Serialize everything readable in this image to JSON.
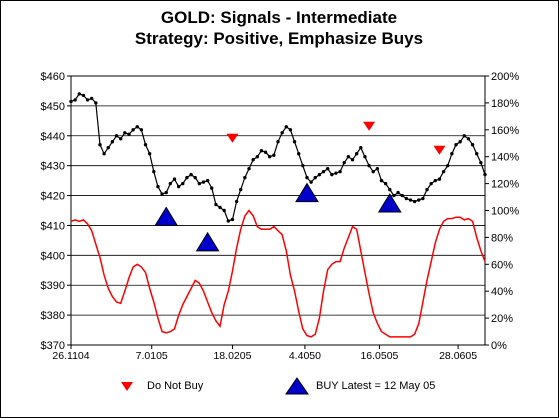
{
  "chart_data": {
    "type": "line",
    "title": "GOLD: Signals - Intermediate",
    "subtitle": "Strategy: Positive, Emphasize Buys",
    "x_ticks": [
      "26.1104",
      "7.0105",
      "18.0205",
      "4.4050",
      "16.0505",
      "28.0605"
    ],
    "left_axis": {
      "ylim": [
        370,
        460
      ],
      "ticks": [
        "$370",
        "$380",
        "$390",
        "$400",
        "$410",
        "$420",
        "$430",
        "$440",
        "$450",
        "$460"
      ]
    },
    "right_axis": {
      "ylim": [
        0,
        200
      ],
      "ticks": [
        "0%",
        "20%",
        "40%",
        "60%",
        "80%",
        "100%",
        "120%",
        "140%",
        "160%",
        "180%",
        "200%"
      ]
    },
    "grid": true,
    "price": [
      [
        0,
        451.5
      ],
      [
        1,
        452
      ],
      [
        2,
        454
      ],
      [
        3,
        453.5
      ],
      [
        4,
        452
      ],
      [
        5,
        452.5
      ],
      [
        6,
        451
      ],
      [
        7,
        437
      ],
      [
        8,
        434
      ],
      [
        9,
        436
      ],
      [
        10,
        438
      ],
      [
        11,
        440
      ],
      [
        12,
        439
      ],
      [
        13,
        441
      ],
      [
        14,
        440.5
      ],
      [
        15,
        442
      ],
      [
        16,
        443
      ],
      [
        17,
        442
      ],
      [
        18,
        437
      ],
      [
        19,
        434
      ],
      [
        20,
        428
      ],
      [
        21,
        423
      ],
      [
        22,
        420.5
      ],
      [
        23,
        421
      ],
      [
        24,
        424
      ],
      [
        25,
        425.5
      ],
      [
        26,
        423
      ],
      [
        27,
        424
      ],
      [
        28,
        426
      ],
      [
        29,
        427
      ],
      [
        30,
        426
      ],
      [
        31,
        424
      ],
      [
        32,
        424.5
      ],
      [
        33,
        425
      ],
      [
        34,
        422.5
      ],
      [
        35,
        417
      ],
      [
        36,
        416
      ],
      [
        37,
        415
      ],
      [
        38,
        411.5
      ],
      [
        39,
        412
      ],
      [
        40,
        418
      ],
      [
        41,
        422
      ],
      [
        42,
        426
      ],
      [
        43,
        429
      ],
      [
        44,
        432
      ],
      [
        45,
        433
      ],
      [
        46,
        435
      ],
      [
        47,
        434.5
      ],
      [
        48,
        433
      ],
      [
        49,
        433.5
      ],
      [
        50,
        438
      ],
      [
        51,
        441
      ],
      [
        52,
        443
      ],
      [
        53,
        442
      ],
      [
        54,
        438
      ],
      [
        55,
        434
      ],
      [
        56,
        430
      ],
      [
        57,
        426
      ],
      [
        58,
        424.5
      ],
      [
        59,
        426
      ],
      [
        60,
        427
      ],
      [
        61,
        428
      ],
      [
        62,
        429
      ],
      [
        63,
        427
      ],
      [
        64,
        427.5
      ],
      [
        65,
        428
      ],
      [
        66,
        431
      ],
      [
        67,
        433
      ],
      [
        68,
        432
      ],
      [
        69,
        434
      ],
      [
        70,
        436
      ],
      [
        71,
        433
      ],
      [
        72,
        430
      ],
      [
        73,
        428
      ],
      [
        74,
        429
      ],
      [
        75,
        425
      ],
      [
        76,
        424
      ],
      [
        77,
        422
      ],
      [
        78,
        420
      ],
      [
        79,
        421
      ],
      [
        80,
        420
      ],
      [
        81,
        419
      ],
      [
        82,
        418.5
      ],
      [
        83,
        418
      ],
      [
        84,
        418.5
      ],
      [
        85,
        419
      ],
      [
        86,
        422
      ],
      [
        87,
        424
      ],
      [
        88,
        425
      ],
      [
        89,
        425.5
      ],
      [
        90,
        428
      ],
      [
        91,
        430
      ],
      [
        92,
        434
      ],
      [
        93,
        437
      ],
      [
        94,
        438
      ],
      [
        95,
        440
      ],
      [
        96,
        439
      ],
      [
        97,
        437
      ],
      [
        98,
        434
      ],
      [
        99,
        431
      ],
      [
        100,
        427
      ]
    ],
    "indicator_pct": [
      [
        0,
        92
      ],
      [
        1,
        93
      ],
      [
        2,
        92
      ],
      [
        3,
        93
      ],
      [
        4,
        90
      ],
      [
        5,
        85
      ],
      [
        6,
        75
      ],
      [
        7,
        65
      ],
      [
        8,
        52
      ],
      [
        9,
        42
      ],
      [
        10,
        36
      ],
      [
        11,
        32
      ],
      [
        12,
        31
      ],
      [
        13,
        40
      ],
      [
        14,
        50
      ],
      [
        15,
        58
      ],
      [
        16,
        60
      ],
      [
        17,
        58
      ],
      [
        18,
        54
      ],
      [
        19,
        42
      ],
      [
        20,
        32
      ],
      [
        21,
        20
      ],
      [
        22,
        10
      ],
      [
        23,
        9
      ],
      [
        24,
        10
      ],
      [
        25,
        12
      ],
      [
        26,
        22
      ],
      [
        27,
        30
      ],
      [
        28,
        36
      ],
      [
        29,
        42
      ],
      [
        30,
        48
      ],
      [
        31,
        46
      ],
      [
        32,
        40
      ],
      [
        33,
        32
      ],
      [
        34,
        24
      ],
      [
        35,
        18
      ],
      [
        36,
        14
      ],
      [
        37,
        30
      ],
      [
        38,
        40
      ],
      [
        39,
        55
      ],
      [
        40,
        72
      ],
      [
        41,
        86
      ],
      [
        42,
        96
      ],
      [
        43,
        100
      ],
      [
        44,
        96
      ],
      [
        45,
        88
      ],
      [
        46,
        86
      ],
      [
        47,
        86
      ],
      [
        48,
        86
      ],
      [
        49,
        88
      ],
      [
        50,
        85
      ],
      [
        51,
        82
      ],
      [
        52,
        70
      ],
      [
        53,
        52
      ],
      [
        54,
        40
      ],
      [
        55,
        25
      ],
      [
        56,
        12
      ],
      [
        57,
        7
      ],
      [
        58,
        6
      ],
      [
        59,
        8
      ],
      [
        60,
        20
      ],
      [
        61,
        40
      ],
      [
        62,
        56
      ],
      [
        63,
        60
      ],
      [
        64,
        62
      ],
      [
        65,
        62
      ],
      [
        66,
        72
      ],
      [
        67,
        80
      ],
      [
        68,
        88
      ],
      [
        69,
        86
      ],
      [
        70,
        70
      ],
      [
        71,
        54
      ],
      [
        72,
        38
      ],
      [
        73,
        24
      ],
      [
        74,
        16
      ],
      [
        75,
        10
      ],
      [
        76,
        8
      ],
      [
        77,
        6
      ],
      [
        78,
        6
      ],
      [
        79,
        6
      ],
      [
        80,
        6
      ],
      [
        81,
        6
      ],
      [
        82,
        6
      ],
      [
        83,
        8
      ],
      [
        84,
        16
      ],
      [
        85,
        32
      ],
      [
        86,
        48
      ],
      [
        87,
        62
      ],
      [
        88,
        76
      ],
      [
        89,
        86
      ],
      [
        90,
        92
      ],
      [
        91,
        94
      ],
      [
        92,
        94
      ],
      [
        93,
        95
      ],
      [
        94,
        95
      ],
      [
        95,
        93
      ],
      [
        96,
        94
      ],
      [
        97,
        92
      ],
      [
        98,
        80
      ],
      [
        99,
        70
      ],
      [
        100,
        62
      ]
    ],
    "signals": {
      "buy": [
        [
          23,
          413
        ],
        [
          33,
          404.5
        ],
        [
          57,
          421
        ],
        [
          77,
          417.5
        ]
      ],
      "do_not_buy": [
        [
          39,
          439
        ],
        [
          72,
          443
        ],
        [
          89,
          435
        ]
      ]
    },
    "colors": {
      "price": "#000000",
      "indicator": "#ff0000",
      "buy": "#0000cc",
      "do_not_buy": "#ff0000",
      "grid": "#000000"
    },
    "legend": {
      "do_not_buy_label": "Do Not Buy",
      "buy_label": "BUY Latest = 12 May 05",
      "placement": "bottom"
    }
  }
}
